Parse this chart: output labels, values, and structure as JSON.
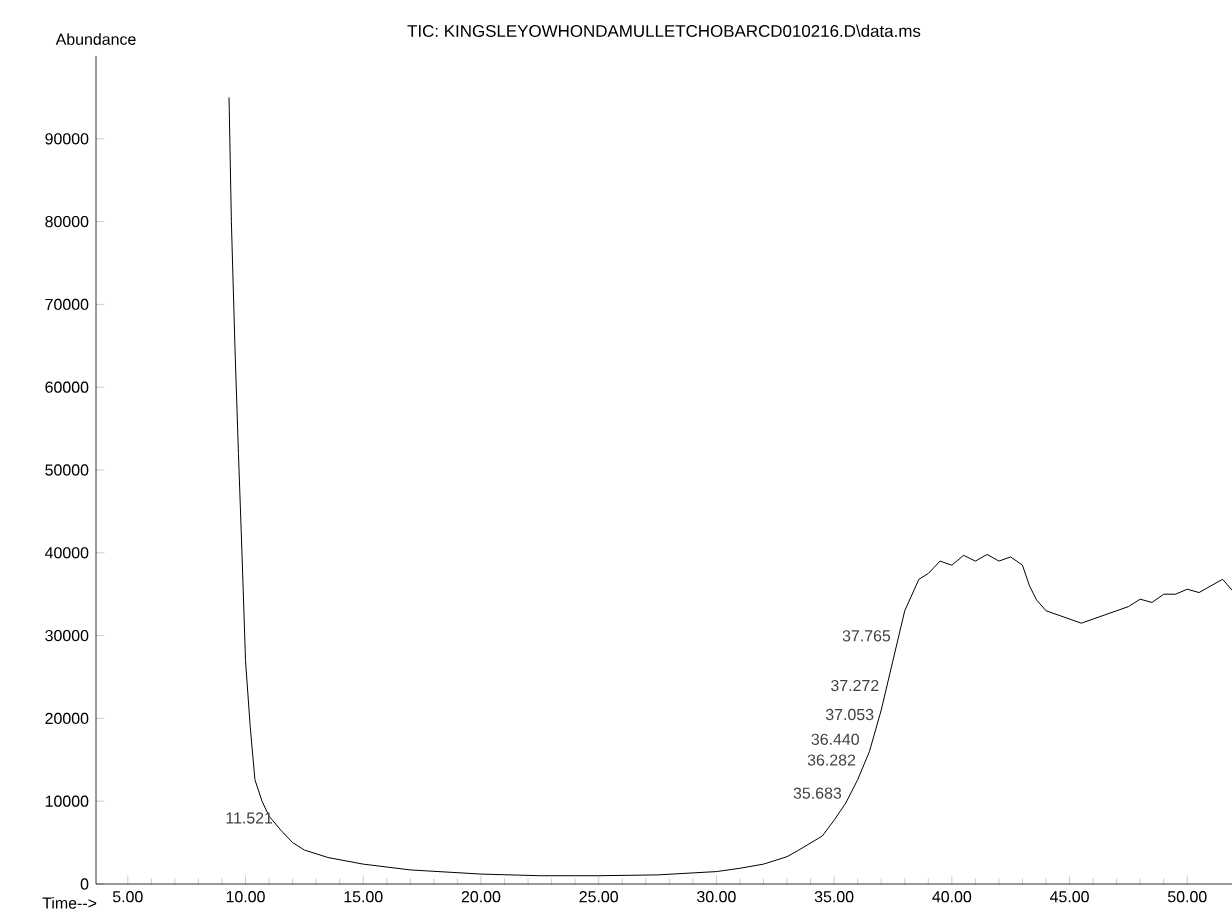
{
  "chart_data": {
    "type": "line",
    "title": "TIC: KINGSLEYOWHONDAMULLETCHOBARCD010216.D\\data.ms",
    "xlabel": "Time-->",
    "ylabel": "Abundance",
    "x": [
      9.3,
      9.4,
      9.55,
      9.7,
      9.85,
      10.0,
      10.2,
      10.4,
      10.7,
      11.0,
      11.5,
      12.0,
      12.5,
      13.5,
      15.0,
      17.0,
      20.0,
      22.5,
      25.0,
      27.5,
      30.0,
      31.0,
      32.0,
      33.0,
      33.5,
      34.5,
      35.0,
      35.5,
      36.0,
      36.5,
      37.0,
      37.5,
      38.0,
      38.6,
      39.0,
      39.5,
      40.0,
      40.5,
      41.0,
      41.5,
      42.0,
      42.5,
      43.0,
      43.3,
      43.6,
      44.0,
      44.5,
      45.0,
      45.5,
      46.0,
      46.5,
      47.0,
      47.5,
      48.0,
      48.5,
      49.0,
      49.5,
      50.0,
      50.5,
      51.0,
      51.5,
      51.9
    ],
    "values": [
      95000,
      80000,
      65000,
      52000,
      40000,
      27000,
      19000,
      12600,
      10000,
      8200,
      6500,
      5000,
      4100,
      3200,
      2400,
      1700,
      1200,
      1000,
      1000,
      1100,
      1500,
      1900,
      2400,
      3300,
      4100,
      5800,
      7700,
      9800,
      12600,
      16000,
      21000,
      27000,
      33000,
      36800,
      37500,
      39000,
      38500,
      39700,
      39000,
      39800,
      39000,
      39500,
      38500,
      36000,
      34300,
      33000,
      32500,
      32000,
      31500,
      32000,
      32500,
      33000,
      33500,
      34400,
      34000,
      35000,
      35000,
      35600,
      35200,
      36000,
      36800,
      35500
    ],
    "color": "#000000",
    "xlim": [
      3.65,
      51.9
    ],
    "ylim": [
      0,
      100000
    ],
    "xticks": [
      {
        "value": 5,
        "label": "5.00"
      },
      {
        "value": 10,
        "label": "10.00"
      },
      {
        "value": 15,
        "label": "15.00"
      },
      {
        "value": 20,
        "label": "20.00"
      },
      {
        "value": 25,
        "label": "25.00"
      },
      {
        "value": 30,
        "label": "30.00"
      },
      {
        "value": 35,
        "label": "35.00"
      },
      {
        "value": 40,
        "label": "40.00"
      },
      {
        "value": 45,
        "label": "45.00"
      },
      {
        "value": 50,
        "label": "50.00"
      }
    ],
    "yticks": [
      0,
      10000,
      20000,
      30000,
      40000,
      50000,
      60000,
      70000,
      80000,
      90000
    ],
    "grid": false,
    "annotations": [
      {
        "text": "11.521",
        "x": 11.521,
        "y": 7000
      },
      {
        "text": "35.683",
        "x": 35.683,
        "y": 10000
      },
      {
        "text": "36.282",
        "x": 36.282,
        "y": 14000
      },
      {
        "text": "36.440",
        "x": 36.44,
        "y": 16500
      },
      {
        "text": "37.053",
        "x": 37.053,
        "y": 19500
      },
      {
        "text": "37.272",
        "x": 37.272,
        "y": 23000
      },
      {
        "text": "37.765",
        "x": 37.765,
        "y": 29000
      }
    ]
  }
}
